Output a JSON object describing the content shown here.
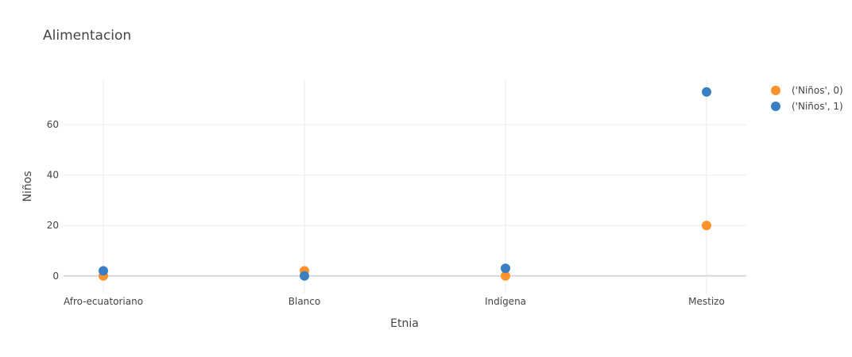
{
  "chart_data": {
    "type": "scatter",
    "title": "Alimentacion",
    "xlabel": "Etnia",
    "ylabel": "Niños",
    "categories": [
      "Afro-ecuatoriano",
      "Blanco",
      "Indígena",
      "Mestizo"
    ],
    "yticks": [
      0,
      20,
      40,
      60
    ],
    "ylim": [
      -7,
      78
    ],
    "grid": true,
    "legend_position": "top-right",
    "series": [
      {
        "name": "('Niños', 0)",
        "color": "#ff922b",
        "values": [
          0,
          2,
          0,
          20
        ]
      },
      {
        "name": "('Niños', 1)",
        "color": "#3a7fc1",
        "values": [
          2,
          0,
          3,
          73
        ]
      }
    ]
  }
}
